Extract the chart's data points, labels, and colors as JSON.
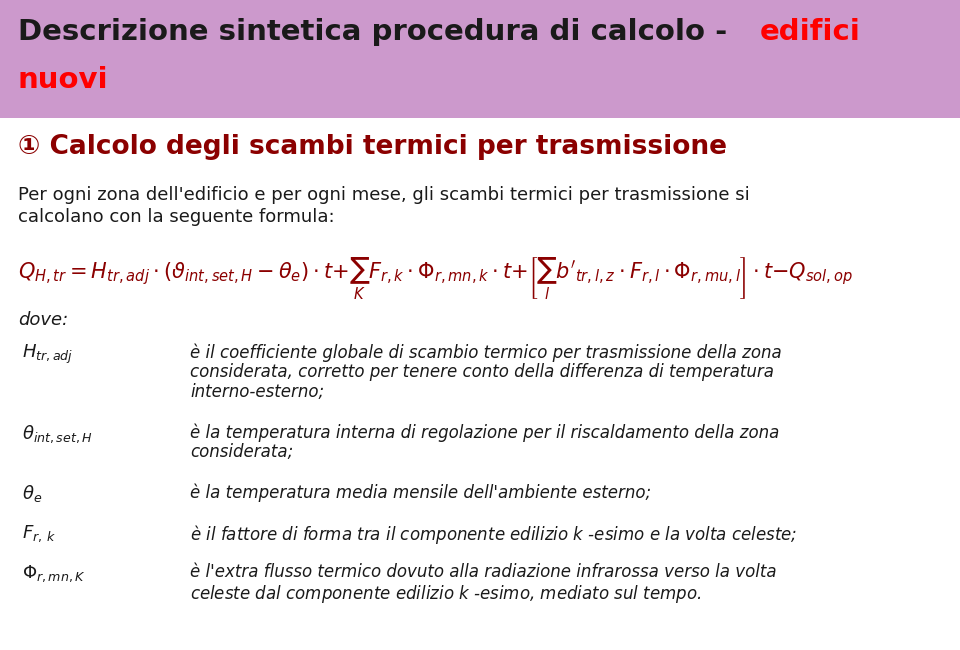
{
  "bg_color": "#cc99cc",
  "white_bg": "#ffffff",
  "title_black": "Descrizione sintetica procedura di calcolo - ",
  "title_red1": "edifici",
  "title_red2": "nuovi",
  "subtitle_text": "① Calcolo degli scambi termici per trasmissione",
  "desc_line1": "Per ogni zona dell'edificio e per ogni mese, gli scambi termici per trasmissione si",
  "desc_line2": "calcolano con la seguente formula:",
  "dove_text": "dove:",
  "entries": [
    {
      "symbol": "$H_{tr,adj}$",
      "lines": [
        "è il coefficiente globale di scambio termico per trasmissione della zona",
        "considerata, corretto per tenere conto della differenza di temperatura",
        "interno-esterno;"
      ]
    },
    {
      "symbol": "$\\theta_{int,set,H}$",
      "lines": [
        "è la temperatura interna di regolazione per il riscaldamento della zona",
        "considerata;"
      ]
    },
    {
      "symbol": "$\\theta_e$",
      "lines": [
        "è la temperatura media mensile dell'ambiente esterno;"
      ]
    },
    {
      "symbol": "$F_{r,\\,k}$",
      "lines": [
        "è il fattore di forma tra il componente edilizio $k$ -esimo e la volta celeste;"
      ]
    },
    {
      "symbol": "$\\Phi_{r,mn,K}$",
      "lines": [
        "è l'extra flusso termico dovuto alla radiazione infrarossa verso la volta",
        "celeste dal componente edilizio $k$ -esimo, mediato sul tempo."
      ]
    }
  ],
  "title_fontsize": 21,
  "subtitle_fontsize": 19,
  "desc_fontsize": 13,
  "formula_fontsize": 15,
  "body_fontsize": 12,
  "symbol_fontsize": 13
}
